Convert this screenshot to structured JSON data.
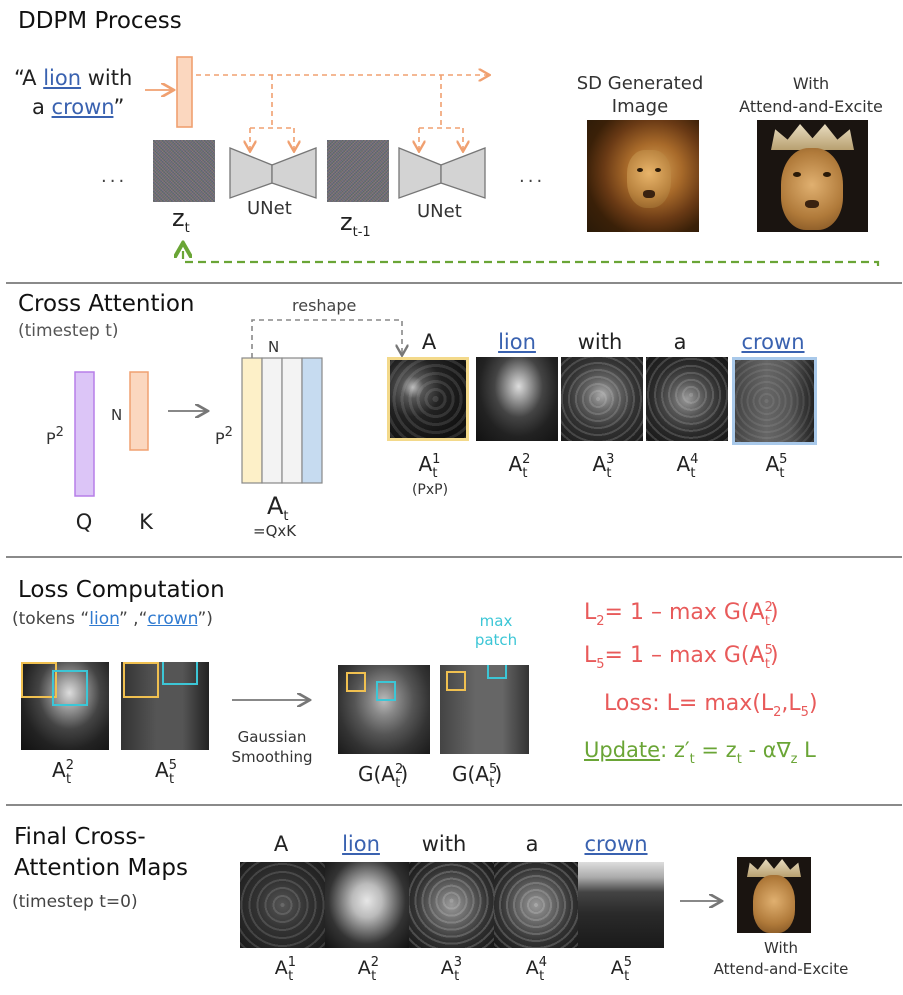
{
  "ddpm": {
    "title": "DDPM Process",
    "prompt_open": "“A ",
    "prompt_lion": "lion",
    "prompt_with": " with",
    "prompt_a": "a ",
    "prompt_crown": "crown",
    "prompt_close": "”",
    "dots": "...",
    "z_t": "z",
    "z_t_sub": "t",
    "z_t1": "z",
    "z_t1_sub": "t-1",
    "unet": "UNet",
    "sd_label_1": "SD Generated",
    "sd_label_2": "Image",
    "ae_label_1": "With",
    "ae_label_2": "Attend-and-Excite"
  },
  "cross": {
    "title": "Cross Attention",
    "subtitle": "(timestep t)",
    "p2": "P",
    "p2_sup": "2",
    "n": "N",
    "q": "Q",
    "k": "K",
    "reshape": "reshape",
    "at": "A",
    "at_sub": "t",
    "qxk": "=QxK",
    "pxp": "(PxP)",
    "tokens": [
      "A",
      "lion",
      "with",
      "a",
      "crown"
    ],
    "map_labels_sup": [
      "1",
      "2",
      "3",
      "4",
      "5"
    ]
  },
  "loss": {
    "title": "Loss Computation",
    "tokens_pre": "(tokens “",
    "tokens_lion": "lion",
    "tokens_mid": "” ,“",
    "tokens_crown": "crown",
    "tokens_post": "”)",
    "max_patch_1": "max",
    "max_patch_2": "patch",
    "gaussian_1": "Gaussian",
    "gaussian_2": "Smoothing",
    "a2": "A",
    "a5": "A",
    "g2": "G(A",
    "g5": "G(A",
    "g_close": ")",
    "l2": "L",
    "l2_sub": "2",
    "l2_eq": "= 1 – max G(A",
    "l5_sub": "5",
    "loss_text": "Loss: L= max(L",
    "loss_mid": ",L",
    "loss_end": ")",
    "update": "Update",
    "update_eq": ": z′",
    "update_eq2": " = z",
    "update_eq3": " - α∇",
    "update_eq4": " L"
  },
  "final": {
    "title_1": "Final Cross-",
    "title_2": "Attention Maps",
    "subtitle": "(timestep t=0)",
    "tokens": [
      "A",
      "lion",
      "with",
      "a",
      "crown"
    ],
    "label_1": "With",
    "label_2": "Attend-and-Excite"
  },
  "colors": {
    "orange": "#f0a070",
    "orange_fill": "#fbd7bf",
    "purple": "#b77ee8",
    "purple_fill": "#dcc5f7",
    "yellow": "#f3d98a",
    "blue_col": "#a9c9ea",
    "green": "#6aa536",
    "cyan": "#3cc6d6",
    "red": "#e85a5a"
  }
}
